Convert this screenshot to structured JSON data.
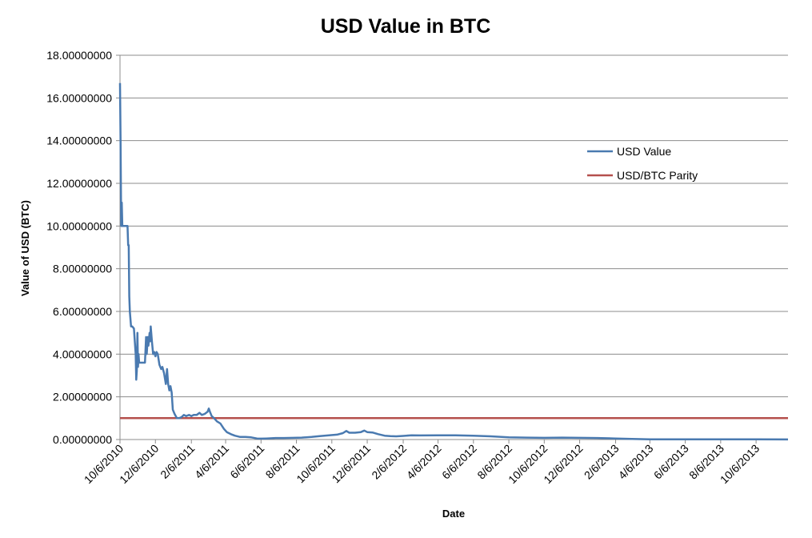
{
  "chart_data": {
    "type": "line",
    "title": "USD Value in BTC",
    "xlabel": "Date",
    "ylabel": "Value of USD (BTC)",
    "ylim": [
      0,
      18
    ],
    "y_ticks": [
      0,
      2,
      4,
      6,
      8,
      10,
      12,
      14,
      16,
      18
    ],
    "y_tick_labels": [
      "0.00000000",
      "2.00000000",
      "4.00000000",
      "6.00000000",
      "8.00000000",
      "10.00000000",
      "12.00000000",
      "14.00000000",
      "16.00000000",
      "18.00000000"
    ],
    "xlim": [
      "2010-10-06",
      "2013-11-30"
    ],
    "x_ticks": [
      "2010-10-06",
      "2010-12-06",
      "2011-02-06",
      "2011-04-06",
      "2011-06-06",
      "2011-08-06",
      "2011-10-06",
      "2011-12-06",
      "2012-02-06",
      "2012-04-06",
      "2012-06-06",
      "2012-08-06",
      "2012-10-06",
      "2012-12-06",
      "2013-02-06",
      "2013-04-06",
      "2013-06-06",
      "2013-08-06",
      "2013-10-06"
    ],
    "x_tick_labels": [
      "10/6/2010",
      "12/6/2010",
      "2/6/2011",
      "4/6/2011",
      "6/6/2011",
      "8/6/2011",
      "10/6/2011",
      "12/6/2011",
      "2/6/2012",
      "4/6/2012",
      "6/6/2012",
      "8/6/2012",
      "10/6/2012",
      "12/6/2012",
      "2/6/2013",
      "4/6/2013",
      "6/6/2013",
      "8/6/2013",
      "10/6/2013"
    ],
    "grid": "horizontal",
    "legend_position": "right",
    "series": [
      {
        "name": "USD Value",
        "color": "#4a7ab0",
        "points": [
          [
            "2010-10-06",
            16.7
          ],
          [
            "2010-10-07",
            14.0
          ],
          [
            "2010-10-08",
            10.0
          ],
          [
            "2010-10-09",
            11.1
          ],
          [
            "2010-10-10",
            10.0
          ],
          [
            "2010-10-12",
            10.0
          ],
          [
            "2010-10-16",
            10.0
          ],
          [
            "2010-10-19",
            10.0
          ],
          [
            "2010-10-20",
            9.1
          ],
          [
            "2010-10-21",
            9.1
          ],
          [
            "2010-10-22",
            6.7
          ],
          [
            "2010-10-23",
            6.0
          ],
          [
            "2010-10-25",
            5.3
          ],
          [
            "2010-10-27",
            5.3
          ],
          [
            "2010-10-30",
            5.2
          ],
          [
            "2010-11-02",
            4.0
          ],
          [
            "2010-11-03",
            2.8
          ],
          [
            "2010-11-04",
            3.2
          ],
          [
            "2010-11-05",
            5.0
          ],
          [
            "2010-11-06",
            3.4
          ],
          [
            "2010-11-07",
            4.0
          ],
          [
            "2010-11-08",
            3.6
          ],
          [
            "2010-11-10",
            3.6
          ],
          [
            "2010-11-14",
            3.6
          ],
          [
            "2010-11-18",
            3.6
          ],
          [
            "2010-11-20",
            4.8
          ],
          [
            "2010-11-21",
            4.0
          ],
          [
            "2010-11-23",
            4.8
          ],
          [
            "2010-11-24",
            4.4
          ],
          [
            "2010-11-26",
            5.0
          ],
          [
            "2010-11-27",
            4.6
          ],
          [
            "2010-11-28",
            5.3
          ],
          [
            "2010-11-30",
            4.6
          ],
          [
            "2010-12-02",
            4.0
          ],
          [
            "2010-12-04",
            4.1
          ],
          [
            "2010-12-06",
            3.9
          ],
          [
            "2010-12-08",
            4.1
          ],
          [
            "2010-12-10",
            4.0
          ],
          [
            "2010-12-13",
            3.5
          ],
          [
            "2010-12-16",
            3.3
          ],
          [
            "2010-12-18",
            3.4
          ],
          [
            "2010-12-21",
            3.1
          ],
          [
            "2010-12-24",
            2.6
          ],
          [
            "2010-12-26",
            3.3
          ],
          [
            "2010-12-28",
            2.6
          ],
          [
            "2010-12-30",
            2.3
          ],
          [
            "2011-01-01",
            2.5
          ],
          [
            "2011-01-03",
            2.2
          ],
          [
            "2011-01-05",
            1.4
          ],
          [
            "2011-01-08",
            1.2
          ],
          [
            "2011-01-12",
            1.0
          ],
          [
            "2011-01-16",
            1.0
          ],
          [
            "2011-01-20",
            1.05
          ],
          [
            "2011-01-24",
            1.15
          ],
          [
            "2011-01-28",
            1.1
          ],
          [
            "2011-02-02",
            1.15
          ],
          [
            "2011-02-06",
            1.1
          ],
          [
            "2011-02-10",
            1.15
          ],
          [
            "2011-02-15",
            1.15
          ],
          [
            "2011-02-20",
            1.25
          ],
          [
            "2011-02-24",
            1.15
          ],
          [
            "2011-03-01",
            1.2
          ],
          [
            "2011-03-06",
            1.3
          ],
          [
            "2011-03-08",
            1.45
          ],
          [
            "2011-03-10",
            1.3
          ],
          [
            "2011-03-13",
            1.1
          ],
          [
            "2011-03-17",
            1.0
          ],
          [
            "2011-03-22",
            0.85
          ],
          [
            "2011-03-28",
            0.75
          ],
          [
            "2011-04-03",
            0.5
          ],
          [
            "2011-04-08",
            0.35
          ],
          [
            "2011-04-15",
            0.25
          ],
          [
            "2011-04-22",
            0.18
          ],
          [
            "2011-05-01",
            0.12
          ],
          [
            "2011-05-10",
            0.12
          ],
          [
            "2011-05-20",
            0.1
          ],
          [
            "2011-05-30",
            0.05
          ],
          [
            "2011-06-06",
            0.04
          ],
          [
            "2011-06-15",
            0.05
          ],
          [
            "2011-07-01",
            0.07
          ],
          [
            "2011-07-15",
            0.07
          ],
          [
            "2011-08-01",
            0.08
          ],
          [
            "2011-08-15",
            0.09
          ],
          [
            "2011-09-01",
            0.12
          ],
          [
            "2011-09-15",
            0.16
          ],
          [
            "2011-10-01",
            0.2
          ],
          [
            "2011-10-15",
            0.23
          ],
          [
            "2011-10-25",
            0.3
          ],
          [
            "2011-10-31",
            0.4
          ],
          [
            "2011-11-05",
            0.32
          ],
          [
            "2011-11-15",
            0.32
          ],
          [
            "2011-11-25",
            0.35
          ],
          [
            "2011-12-01",
            0.42
          ],
          [
            "2011-12-06",
            0.35
          ],
          [
            "2011-12-15",
            0.33
          ],
          [
            "2011-12-25",
            0.25
          ],
          [
            "2012-01-05",
            0.18
          ],
          [
            "2012-01-15",
            0.16
          ],
          [
            "2012-01-25",
            0.15
          ],
          [
            "2012-02-06",
            0.17
          ],
          [
            "2012-02-20",
            0.2
          ],
          [
            "2012-03-06",
            0.19
          ],
          [
            "2012-04-06",
            0.2
          ],
          [
            "2012-05-06",
            0.2
          ],
          [
            "2012-06-06",
            0.18
          ],
          [
            "2012-07-06",
            0.15
          ],
          [
            "2012-08-06",
            0.1
          ],
          [
            "2012-09-06",
            0.09
          ],
          [
            "2012-10-06",
            0.08
          ],
          [
            "2012-11-06",
            0.09
          ],
          [
            "2012-12-06",
            0.08
          ],
          [
            "2013-01-06",
            0.07
          ],
          [
            "2013-02-06",
            0.05
          ],
          [
            "2013-03-06",
            0.03
          ],
          [
            "2013-04-06",
            0.01
          ],
          [
            "2013-06-06",
            0.01
          ],
          [
            "2013-08-06",
            0.01
          ],
          [
            "2013-10-06",
            0.01
          ],
          [
            "2013-11-30",
            0.002
          ]
        ]
      },
      {
        "name": "USD/BTC Parity",
        "color": "#b5504d",
        "points": [
          [
            "2010-10-06",
            1
          ],
          [
            "2013-11-30",
            1
          ]
        ]
      }
    ]
  }
}
